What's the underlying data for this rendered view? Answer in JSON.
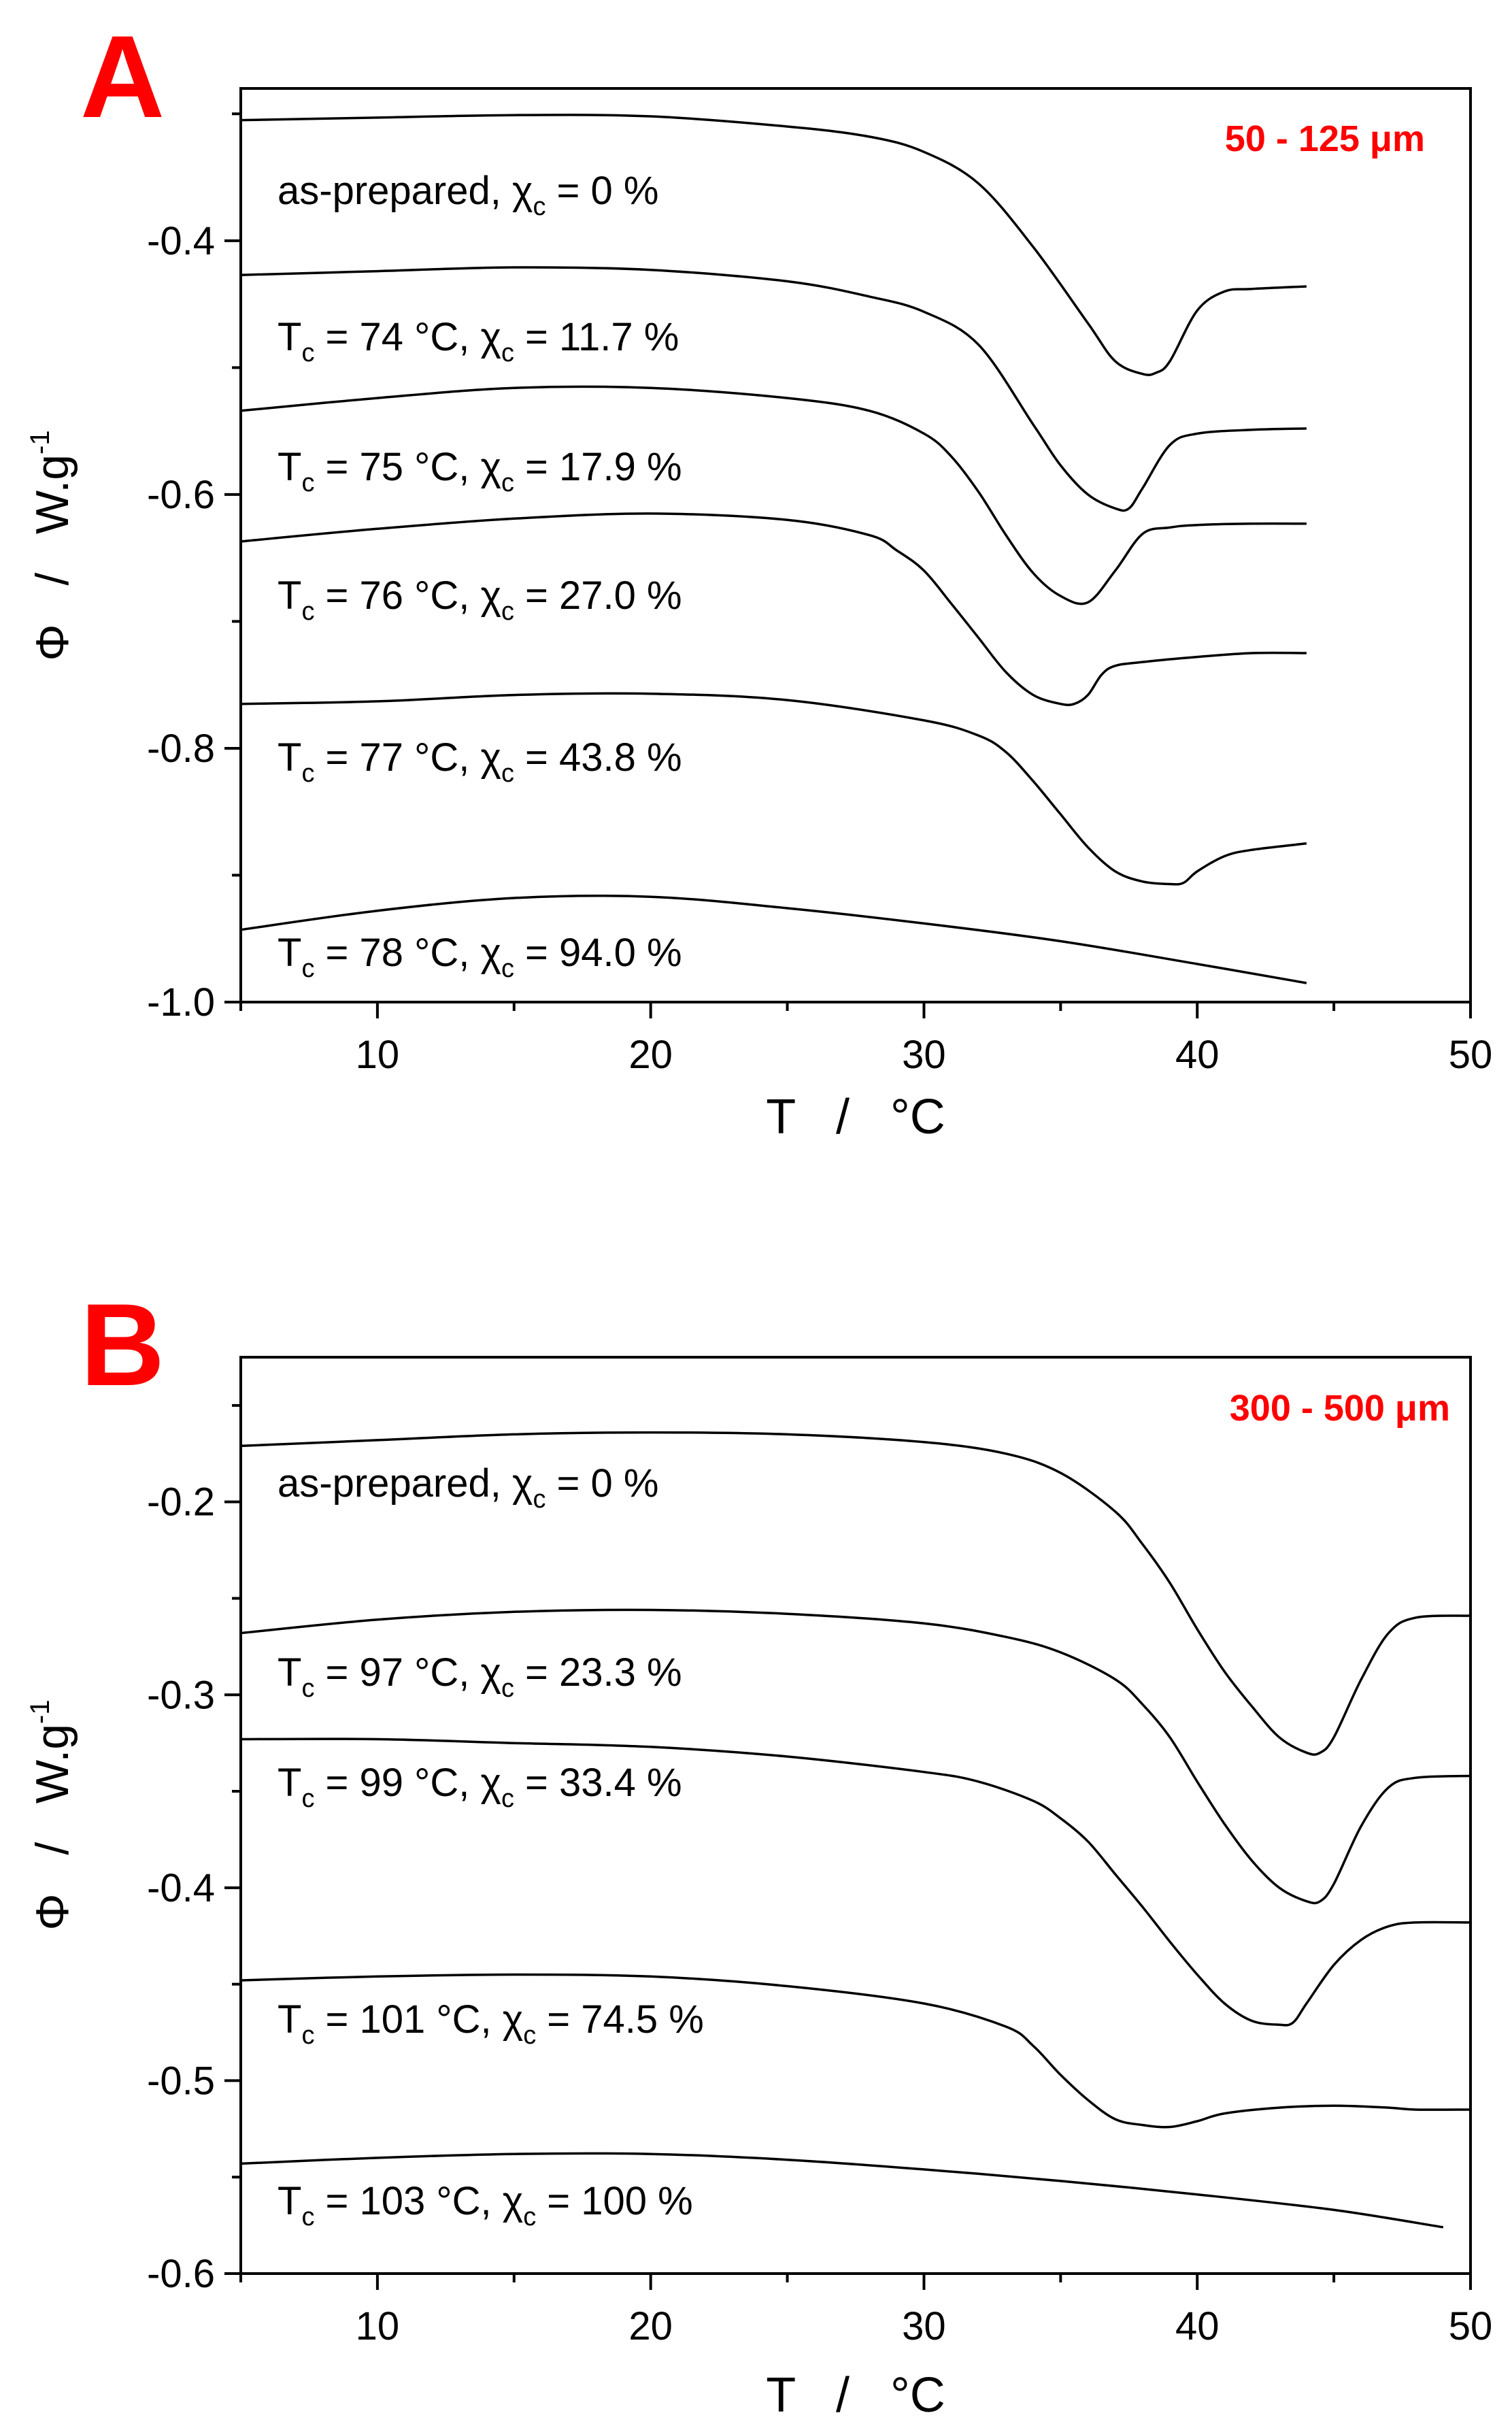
{
  "chart_data": [
    {
      "type": "line",
      "panel_label": "A",
      "annotation": "50 - 125 μm",
      "annotation_color": "#ff0000",
      "xlabel": "T   /   °C",
      "ylabel": "Φ   /   W.g",
      "ylabel_superscript": "-1",
      "xlim": [
        5,
        50
      ],
      "ylim": [
        -1.0,
        -0.28
      ],
      "x_ticks": [
        "10",
        "20",
        "30",
        "40",
        "50"
      ],
      "y_ticks": [
        "-0.4",
        "-0.6",
        "-0.8",
        "-1.0"
      ],
      "grid": false,
      "series": [
        {
          "name": "as-prepared, χc = 0 %",
          "x": [
            5,
            10,
            15,
            20,
            25,
            28,
            30,
            32,
            34,
            36,
            37,
            38,
            38.5,
            39,
            40,
            41,
            42,
            44
          ],
          "y": [
            -0.305,
            -0.303,
            -0.301,
            -0.302,
            -0.31,
            -0.318,
            -0.33,
            -0.355,
            -0.405,
            -0.465,
            -0.495,
            -0.505,
            -0.504,
            -0.495,
            -0.455,
            -0.44,
            -0.438,
            -0.436
          ]
        },
        {
          "name": "Tc = 74 °C, χc = 11.7 %",
          "x": [
            5,
            10,
            15,
            20,
            25,
            28,
            30,
            32,
            34,
            35,
            36,
            37,
            37.5,
            38,
            39,
            40,
            42,
            44
          ],
          "y": [
            -0.427,
            -0.424,
            -0.421,
            -0.423,
            -0.432,
            -0.444,
            -0.456,
            -0.482,
            -0.545,
            -0.577,
            -0.6,
            -0.611,
            -0.611,
            -0.595,
            -0.561,
            -0.552,
            -0.549,
            -0.548
          ]
        },
        {
          "name": "Tc = 75 °C, χc = 17.9 %",
          "x": [
            5,
            10,
            15,
            20,
            25,
            28,
            30,
            31,
            32,
            33,
            34,
            35,
            36,
            37,
            38,
            39,
            40,
            42,
            44
          ],
          "y": [
            -0.534,
            -0.524,
            -0.516,
            -0.516,
            -0.524,
            -0.534,
            -0.552,
            -0.57,
            -0.598,
            -0.632,
            -0.662,
            -0.68,
            -0.685,
            -0.66,
            -0.631,
            -0.626,
            -0.624,
            -0.623,
            -0.623
          ]
        },
        {
          "name": "Tc = 76 °C, χc = 27.0 %",
          "x": [
            5,
            10,
            15,
            20,
            25,
            28,
            29,
            30,
            31,
            32,
            33,
            34,
            35,
            35.5,
            36,
            36.5,
            37,
            38,
            40,
            42,
            44
          ],
          "y": [
            -0.637,
            -0.627,
            -0.619,
            -0.615,
            -0.62,
            -0.632,
            -0.644,
            -0.66,
            -0.686,
            -0.713,
            -0.74,
            -0.758,
            -0.765,
            -0.765,
            -0.758,
            -0.742,
            -0.735,
            -0.732,
            -0.728,
            -0.725,
            -0.725
          ]
        },
        {
          "name": "Tc = 77 °C, χc = 43.8 %",
          "x": [
            5,
            10,
            15,
            20,
            25,
            30,
            32,
            33,
            34,
            35,
            36,
            37,
            38,
            39,
            39.5,
            40,
            41,
            42,
            44
          ],
          "y": [
            -0.765,
            -0.763,
            -0.758,
            -0.757,
            -0.762,
            -0.778,
            -0.79,
            -0.803,
            -0.826,
            -0.852,
            -0.878,
            -0.897,
            -0.905,
            -0.907,
            -0.906,
            -0.897,
            -0.885,
            -0.88,
            -0.875
          ]
        },
        {
          "name": "Tc = 78 °C, χc = 94.0 %",
          "x": [
            5,
            10,
            15,
            20,
            25,
            30,
            35,
            40,
            44
          ],
          "y": [
            -0.943,
            -0.928,
            -0.918,
            -0.917,
            -0.926,
            -0.938,
            -0.952,
            -0.97,
            -0.985
          ]
        }
      ]
    },
    {
      "type": "line",
      "panel_label": "B",
      "annotation": "300 - 500 μm",
      "annotation_color": "#ff0000",
      "xlabel": "T   /   °C",
      "ylabel": "Φ   /   W.g",
      "ylabel_superscript": "-1",
      "xlim": [
        5,
        50
      ],
      "ylim": [
        -0.6,
        -0.125
      ],
      "x_ticks": [
        "10",
        "20",
        "30",
        "40",
        "50"
      ],
      "y_ticks": [
        "-0.2",
        "-0.3",
        "-0.4",
        "-0.5",
        "-0.6"
      ],
      "grid": false,
      "series": [
        {
          "name": "as-prepared, χc = 0 %",
          "x": [
            5,
            10,
            15,
            20,
            25,
            30,
            33,
            35,
            37,
            38,
            39,
            40,
            41,
            42,
            43,
            44,
            44.5,
            45,
            46,
            47,
            48,
            50
          ],
          "y": [
            -0.171,
            -0.168,
            -0.165,
            -0.164,
            -0.165,
            -0.169,
            -0.175,
            -0.185,
            -0.205,
            -0.222,
            -0.242,
            -0.266,
            -0.288,
            -0.306,
            -0.322,
            -0.33,
            -0.33,
            -0.322,
            -0.292,
            -0.268,
            -0.26,
            -0.259
          ]
        },
        {
          "name": "Tc = 97 °C, χc = 23.3 %",
          "x": [
            5,
            10,
            15,
            20,
            25,
            30,
            33,
            35,
            37,
            38,
            39,
            40,
            41,
            42,
            43,
            44,
            44.5,
            45,
            46,
            47,
            48,
            50
          ],
          "y": [
            -0.268,
            -0.261,
            -0.257,
            -0.256,
            -0.258,
            -0.263,
            -0.27,
            -0.278,
            -0.292,
            -0.305,
            -0.322,
            -0.345,
            -0.367,
            -0.386,
            -0.4,
            -0.407,
            -0.407,
            -0.398,
            -0.368,
            -0.348,
            -0.343,
            -0.342
          ]
        },
        {
          "name": "Tc = 99 °C, χc = 33.4 %",
          "x": [
            5,
            10,
            15,
            20,
            25,
            30,
            32,
            34,
            35,
            36,
            37,
            38,
            39,
            40,
            41,
            42,
            43,
            43.5,
            44,
            45,
            46,
            47,
            48,
            50
          ],
          "y": [
            -0.323,
            -0.323,
            -0.325,
            -0.327,
            -0.332,
            -0.34,
            -0.345,
            -0.355,
            -0.364,
            -0.376,
            -0.393,
            -0.41,
            -0.428,
            -0.445,
            -0.46,
            -0.469,
            -0.471,
            -0.47,
            -0.46,
            -0.44,
            -0.427,
            -0.42,
            -0.418,
            -0.418
          ]
        },
        {
          "name": "Tc = 101 °C, χc = 74.5 %",
          "x": [
            5,
            10,
            15,
            20,
            25,
            30,
            33,
            34,
            35,
            36,
            37,
            38,
            39,
            40,
            41,
            43,
            45,
            47,
            48,
            50
          ],
          "y": [
            -0.448,
            -0.446,
            -0.445,
            -0.446,
            -0.451,
            -0.46,
            -0.472,
            -0.482,
            -0.497,
            -0.51,
            -0.52,
            -0.523,
            -0.524,
            -0.521,
            -0.517,
            -0.514,
            -0.513,
            -0.514,
            -0.515,
            -0.515
          ]
        },
        {
          "name": "Tc = 103 °C, χc = 100 %",
          "x": [
            5,
            10,
            15,
            20,
            25,
            30,
            35,
            40,
            45,
            49
          ],
          "y": [
            -0.543,
            -0.54,
            -0.538,
            -0.538,
            -0.541,
            -0.546,
            -0.552,
            -0.559,
            -0.567,
            -0.576
          ]
        }
      ]
    }
  ]
}
